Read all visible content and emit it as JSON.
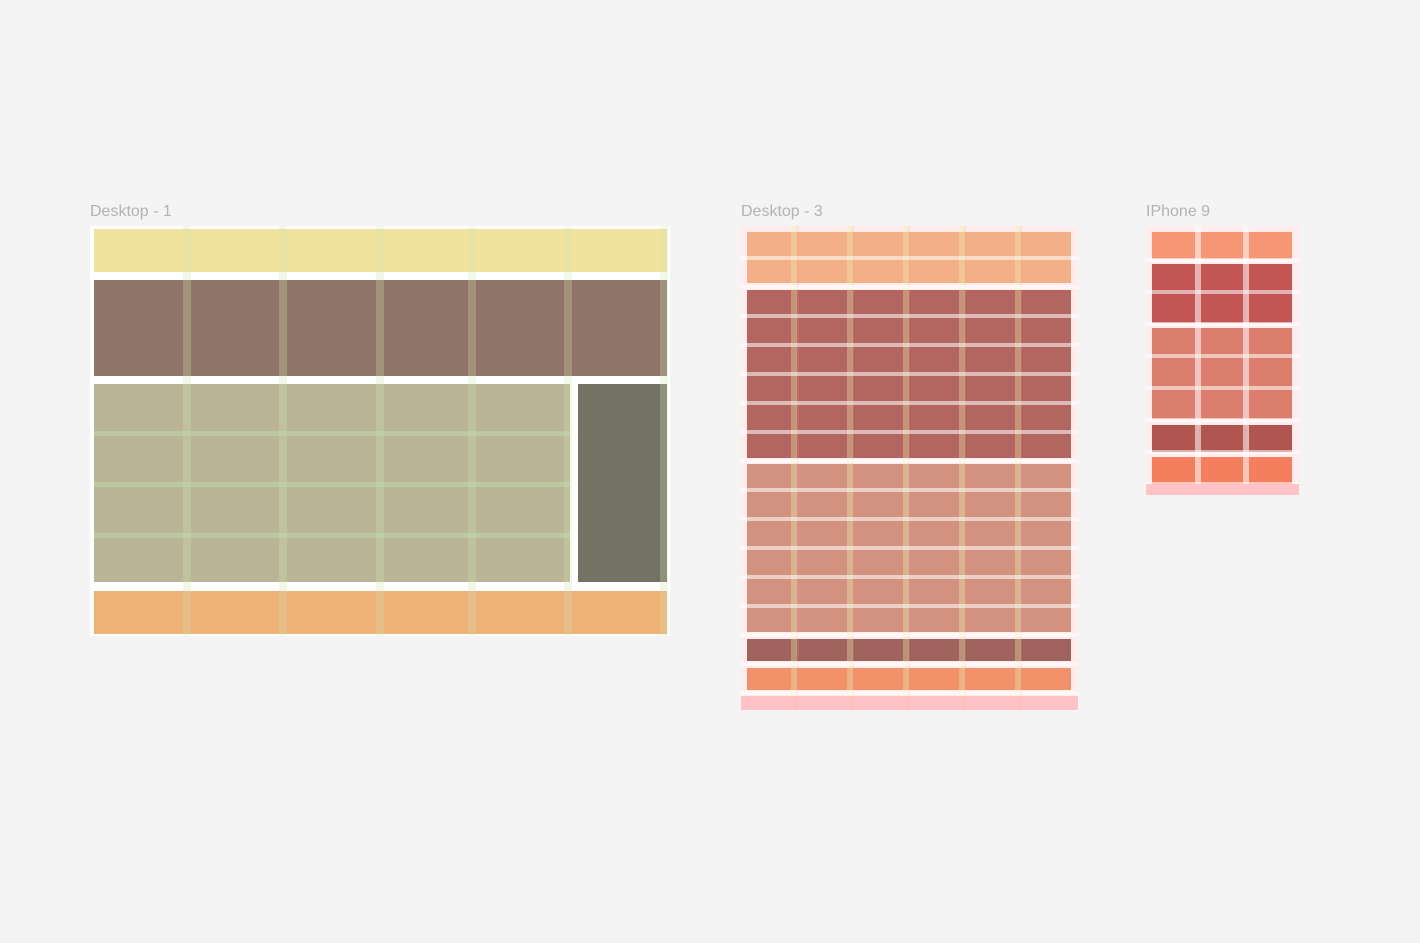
{
  "frames": [
    {
      "name": "Desktop - 1",
      "block_colors": [
        "#f1e29e",
        "#8f7468",
        "#bab596",
        "#737264",
        "#eeb277"
      ]
    },
    {
      "name": "Desktop - 3",
      "block_colors": [
        "#f1b683",
        "#a55d55",
        "#cb937b",
        "#8e5a52",
        "#f09362"
      ]
    },
    {
      "name": "IPhone 9",
      "block_colors": [
        "#f3986e",
        "#b84c49",
        "#d57b67",
        "#a14b43",
        "#f37b55"
      ]
    }
  ]
}
